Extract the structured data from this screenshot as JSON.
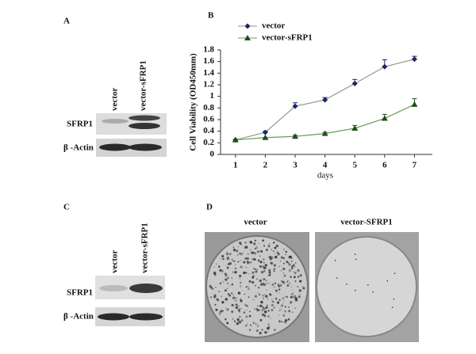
{
  "chart_data": {
    "type": "line",
    "panel_label": "B",
    "x": [
      1,
      2,
      3,
      4,
      5,
      6,
      7
    ],
    "xlim": [
      0.5,
      7.6
    ],
    "xticks": [
      1,
      2,
      3,
      4,
      5,
      6,
      7
    ],
    "ylim": [
      0,
      1.8
    ],
    "yticks": [
      0,
      0.2,
      0.4,
      0.6,
      0.8,
      1,
      1.2,
      1.4,
      1.6,
      1.8
    ],
    "xlabel": "days",
    "ylabel": "Cell Viability (OD450mm)",
    "legend": "upper left",
    "series": [
      {
        "name": "vector",
        "color": "#1c2466",
        "line_color": "#8f9a86",
        "marker": "diamond",
        "values": [
          0.25,
          0.38,
          0.83,
          0.94,
          1.22,
          1.51,
          1.64
        ],
        "errors": [
          0,
          0.02,
          0.06,
          0.04,
          0.07,
          0.12,
          0.05
        ]
      },
      {
        "name": "vector-sFRP1",
        "color": "#1f4d1c",
        "line_color": "#6f9a5e",
        "marker": "triangle",
        "values": [
          0.25,
          0.29,
          0.31,
          0.36,
          0.45,
          0.62,
          0.86
        ],
        "errors": [
          0,
          0,
          0.02,
          0.02,
          0.05,
          0.07,
          0.1
        ]
      }
    ]
  },
  "panels": {
    "A": {
      "label": "A",
      "lanes": [
        "vector",
        "vector-sFRP1"
      ],
      "rows": [
        "SFRP1",
        "β -Actin"
      ]
    },
    "C": {
      "label": "C",
      "lanes": [
        "vector",
        "vector-sFRP1"
      ],
      "rows": [
        "SFRP1",
        "β -Actin"
      ]
    },
    "D": {
      "label": "D",
      "plates": [
        "vector",
        "vector-SFRP1"
      ]
    }
  }
}
